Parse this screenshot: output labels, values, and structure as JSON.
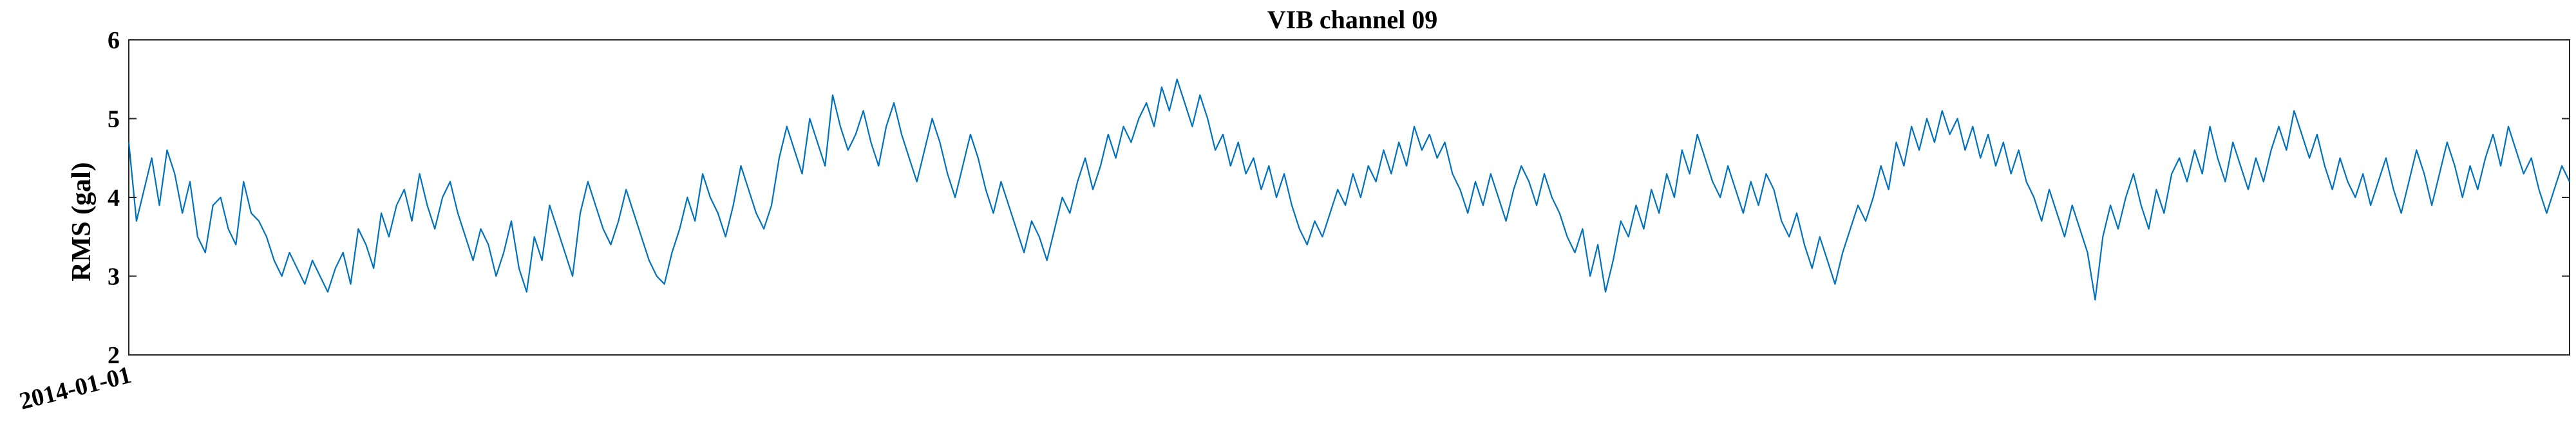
{
  "chart_data": {
    "type": "line",
    "title": "VIB channel 09",
    "xlabel": "",
    "ylabel": "RMS (gal)",
    "ylim": [
      2,
      6
    ],
    "yticks": [
      "2",
      "3",
      "4",
      "5",
      "6"
    ],
    "xticks": [
      "2014-01-01"
    ],
    "grid": false,
    "series": [
      {
        "color": "#0072BD",
        "x_start": "2014-01-01",
        "x_step_days": 1,
        "values": [
          4.7,
          3.7,
          4.1,
          4.5,
          3.9,
          4.6,
          4.3,
          3.8,
          4.2,
          3.5,
          3.3,
          3.9,
          4.0,
          3.6,
          3.4,
          4.2,
          3.8,
          3.7,
          3.5,
          3.2,
          3.0,
          3.3,
          3.1,
          2.9,
          3.2,
          3.0,
          2.8,
          3.1,
          3.3,
          2.9,
          3.6,
          3.4,
          3.1,
          3.8,
          3.5,
          3.9,
          4.1,
          3.7,
          4.3,
          3.9,
          3.6,
          4.0,
          4.2,
          3.8,
          3.5,
          3.2,
          3.6,
          3.4,
          3.0,
          3.3,
          3.7,
          3.1,
          2.8,
          3.5,
          3.2,
          3.9,
          3.6,
          3.3,
          3.0,
          3.8,
          4.2,
          3.9,
          3.6,
          3.4,
          3.7,
          4.1,
          3.8,
          3.5,
          3.2,
          3.0,
          2.9,
          3.3,
          3.6,
          4.0,
          3.7,
          4.3,
          4.0,
          3.8,
          3.5,
          3.9,
          4.4,
          4.1,
          3.8,
          3.6,
          3.9,
          4.5,
          4.9,
          4.6,
          4.3,
          5.0,
          4.7,
          4.4,
          5.3,
          4.9,
          4.6,
          4.8,
          5.1,
          4.7,
          4.4,
          4.9,
          5.2,
          4.8,
          4.5,
          4.2,
          4.6,
          5.0,
          4.7,
          4.3,
          4.0,
          4.4,
          4.8,
          4.5,
          4.1,
          3.8,
          4.2,
          3.9,
          3.6,
          3.3,
          3.7,
          3.5,
          3.2,
          3.6,
          4.0,
          3.8,
          4.2,
          4.5,
          4.1,
          4.4,
          4.8,
          4.5,
          4.9,
          4.7,
          5.0,
          5.2,
          4.9,
          5.4,
          5.1,
          5.5,
          5.2,
          4.9,
          5.3,
          5.0,
          4.6,
          4.8,
          4.4,
          4.7,
          4.3,
          4.5,
          4.1,
          4.4,
          4.0,
          4.3,
          3.9,
          3.6,
          3.4,
          3.7,
          3.5,
          3.8,
          4.1,
          3.9,
          4.3,
          4.0,
          4.4,
          4.2,
          4.6,
          4.3,
          4.7,
          4.4,
          4.9,
          4.6,
          4.8,
          4.5,
          4.7,
          4.3,
          4.1,
          3.8,
          4.2,
          3.9,
          4.3,
          4.0,
          3.7,
          4.1,
          4.4,
          4.2,
          3.9,
          4.3,
          4.0,
          3.8,
          3.5,
          3.3,
          3.6,
          3.0,
          3.4,
          2.8,
          3.2,
          3.7,
          3.5,
          3.9,
          3.6,
          4.1,
          3.8,
          4.3,
          4.0,
          4.6,
          4.3,
          4.8,
          4.5,
          4.2,
          4.0,
          4.4,
          4.1,
          3.8,
          4.2,
          3.9,
          4.3,
          4.1,
          3.7,
          3.5,
          3.8,
          3.4,
          3.1,
          3.5,
          3.2,
          2.9,
          3.3,
          3.6,
          3.9,
          3.7,
          4.0,
          4.4,
          4.1,
          4.7,
          4.4,
          4.9,
          4.6,
          5.0,
          4.7,
          5.1,
          4.8,
          5.0,
          4.6,
          4.9,
          4.5,
          4.8,
          4.4,
          4.7,
          4.3,
          4.6,
          4.2,
          4.0,
          3.7,
          4.1,
          3.8,
          3.5,
          3.9,
          3.6,
          3.3,
          2.7,
          3.5,
          3.9,
          3.6,
          4.0,
          4.3,
          3.9,
          3.6,
          4.1,
          3.8,
          4.3,
          4.5,
          4.2,
          4.6,
          4.3,
          4.9,
          4.5,
          4.2,
          4.7,
          4.4,
          4.1,
          4.5,
          4.2,
          4.6,
          4.9,
          4.6,
          5.1,
          4.8,
          4.5,
          4.8,
          4.4,
          4.1,
          4.5,
          4.2,
          4.0,
          4.3,
          3.9,
          4.2,
          4.5,
          4.1,
          3.8,
          4.2,
          4.6,
          4.3,
          3.9,
          4.3,
          4.7,
          4.4,
          4.0,
          4.4,
          4.1,
          4.5,
          4.8,
          4.4,
          4.9,
          4.6,
          4.3,
          4.5,
          4.1,
          3.8,
          4.1,
          4.4,
          4.2
        ]
      }
    ]
  }
}
